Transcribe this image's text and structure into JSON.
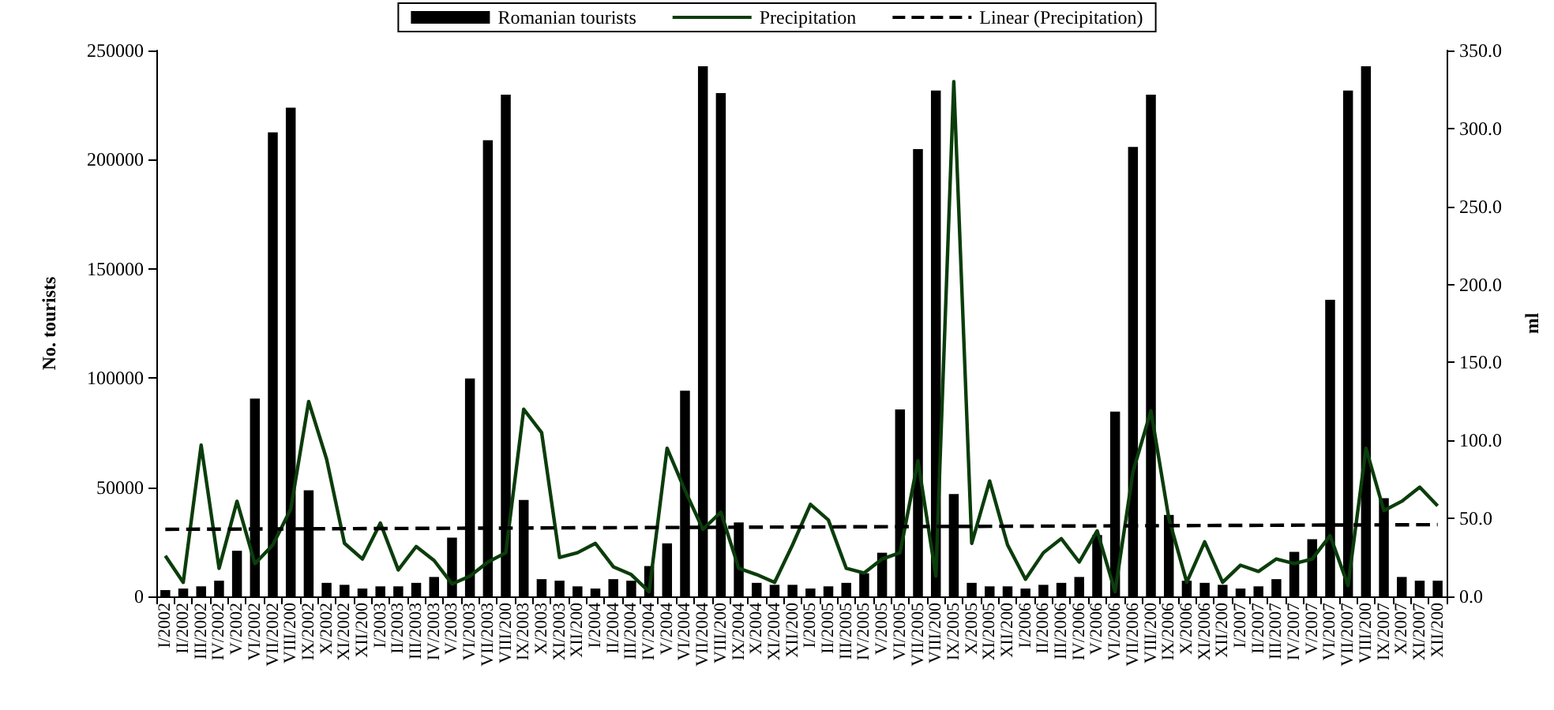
{
  "chart_data": {
    "type": "bar",
    "ylabel": "No. tourists",
    "y2label": "ml",
    "categories": [
      "I/2002",
      "II/2002",
      "III/2002",
      "IV/2002",
      "V/2002",
      "VI/2002",
      "VII/2002",
      "VIII/200",
      "IX/2002",
      "X/2002",
      "XI/2002",
      "XII/200",
      "I/2003",
      "II/2003",
      "III/2003",
      "IV/2003",
      "V/2003",
      "VI/2003",
      "VII/2003",
      "VIII/200",
      "IX/2003",
      "X/2003",
      "XI/2003",
      "XII/200",
      "I/2004",
      "II/2004",
      "III/2004",
      "IV/2004",
      "V/2004",
      "VI/2004",
      "VII/2004",
      "VIII/200",
      "IX/2004",
      "X/2004",
      "XI/2004",
      "XII/200",
      "I/2005",
      "II/2005",
      "III/2005",
      "IV/2005",
      "V/2005",
      "VI/2005",
      "VII/2005",
      "VIII/200",
      "IX/2005",
      "X/2005",
      "XI/2005",
      "XII/200",
      "I/2006",
      "II/2006",
      "III/2006",
      "IV/2006",
      "V/2006",
      "VI/2006",
      "VII/2006",
      "VIII/200",
      "IX/2006",
      "X/2006",
      "XI/2006",
      "XII/200",
      "I/2007",
      "II/2007",
      "III/2007",
      "IV/2007",
      "V/2007",
      "VI/2007",
      "VII/2007",
      "VIII/200",
      "IX/2007",
      "X/2007",
      "XI/2007",
      "XII/200"
    ],
    "series": [
      {
        "name": "Romanian tourists",
        "color": "#000000",
        "values": [
          2900,
          3600,
          4600,
          7200,
          20900,
          90600,
          212500,
          223800,
          48600,
          6200,
          5300,
          3600,
          4600,
          4600,
          6200,
          8900,
          26900,
          99800,
          208900,
          229800,
          44200,
          7900,
          7200,
          4600,
          3600,
          7900,
          7200,
          13900,
          24300,
          94200,
          242800,
          230500,
          33900,
          6200,
          5300,
          5300,
          3600,
          4600,
          6200,
          10600,
          20000,
          85600,
          204800,
          231700,
          46900,
          6200,
          4600,
          4600,
          3600,
          5300,
          6200,
          8900,
          28100,
          84600,
          205800,
          229800,
          37300,
          7200,
          6200,
          5300,
          3600,
          4600,
          7900,
          20400,
          26200,
          135800,
          231700,
          242800,
          45000,
          8900,
          7200,
          7200
        ]
      },
      {
        "name": "Precipitation",
        "type": "line",
        "axis": "y2",
        "color": "#0b3d0b",
        "line_style": "solid",
        "values": [
          26,
          9,
          97,
          18,
          61,
          21,
          33,
          56,
          125,
          88,
          34,
          24,
          47,
          17,
          32,
          23,
          8,
          13,
          22,
          28,
          120,
          105,
          25,
          28,
          34,
          19,
          14,
          3,
          95,
          68,
          43,
          54,
          18,
          14,
          9,
          33,
          59,
          49,
          18,
          15,
          24,
          28,
          87,
          13,
          330,
          34,
          74,
          33,
          11,
          28,
          37,
          22,
          42,
          3,
          80,
          119,
          50,
          9,
          35,
          9,
          20,
          16,
          24,
          21,
          24,
          39,
          7,
          95,
          55,
          61,
          70,
          58
        ]
      },
      {
        "name": "Linear (Precipitation)",
        "type": "line",
        "axis": "y2",
        "color": "#000000",
        "line_style": "dashed",
        "values": [
          43,
          null,
          null,
          null,
          null,
          null,
          null,
          null,
          null,
          null,
          null,
          null,
          null,
          null,
          null,
          null,
          null,
          null,
          null,
          null,
          null,
          null,
          null,
          null,
          null,
          null,
          null,
          null,
          null,
          null,
          null,
          null,
          null,
          null,
          null,
          null,
          null,
          null,
          null,
          null,
          null,
          null,
          null,
          null,
          null,
          null,
          null,
          null,
          null,
          null,
          null,
          null,
          null,
          null,
          null,
          null,
          null,
          null,
          null,
          null,
          null,
          null,
          null,
          null,
          null,
          null,
          null,
          null,
          null,
          null,
          null,
          46
        ]
      }
    ],
    "ylim": [
      0,
      250000
    ],
    "yticks": [
      0,
      50000,
      100000,
      150000,
      200000,
      250000
    ],
    "y2lim": [
      0,
      350
    ],
    "y2ticks": [
      {
        "value": 0,
        "label": "0.0"
      },
      {
        "value": 50,
        "label": "50.0"
      },
      {
        "value": 100,
        "label": "100.0"
      },
      {
        "value": 150,
        "label": "150.0"
      },
      {
        "value": 200,
        "label": "200.0"
      },
      {
        "value": 250,
        "label": "250.0"
      },
      {
        "value": 300,
        "label": "300.0"
      },
      {
        "value": 350,
        "label": "350.0"
      }
    ],
    "marker": "none",
    "grid": false,
    "legend": "top"
  }
}
